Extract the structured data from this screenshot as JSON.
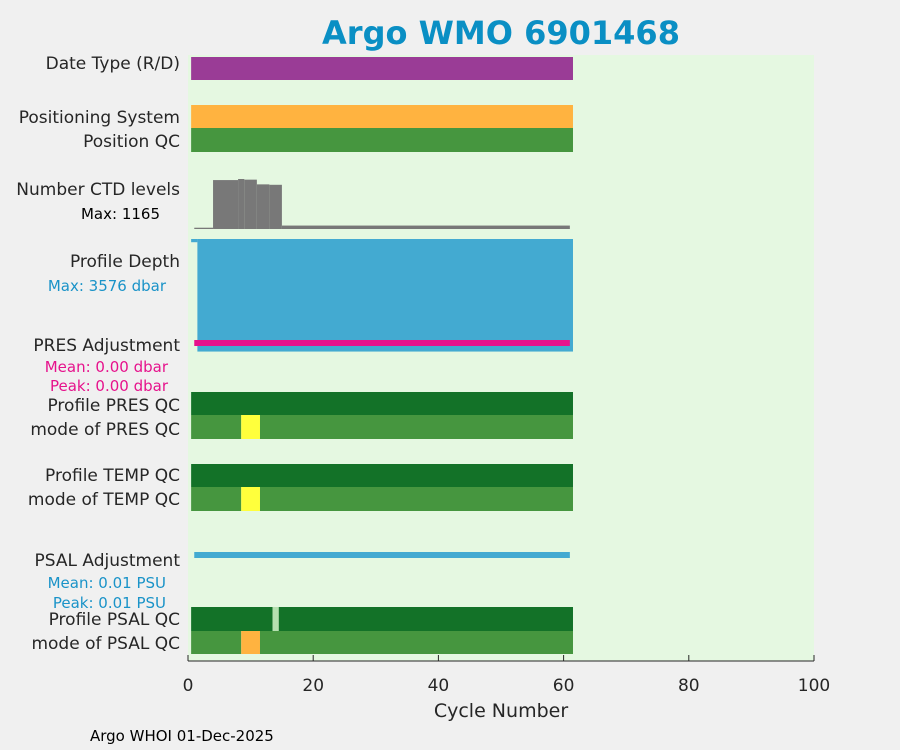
{
  "title": "Argo WMO 6901468",
  "footer": "Argo WHOI 01-Dec-2025",
  "colors": {
    "title": "#0a8fc4",
    "plot_bg": "#e5f8e1",
    "date_type": "#9a3c96",
    "positioning": "#ffb340",
    "qc_good": "#46963f",
    "qc_dark": "#137228",
    "qc_yellow": "#ffff3c",
    "qc_orange": "#ffb340",
    "qc_light": "#b6e0b0",
    "ctd": "#787878",
    "depth": "#43aad1",
    "pres_adj": "#e6128c",
    "psal_adj": "#43aad1",
    "depth_text": "#1a93c8",
    "pres_text": "#e6128c",
    "psal_text": "#1a93c8"
  },
  "rows": {
    "date_type": "Date Type (R/D)",
    "positioning": "Positioning System",
    "position_qc": "Position QC",
    "ctd": "Number CTD levels",
    "ctd_max": "Max: 1165",
    "depth": "Profile Depth",
    "depth_max": "Max: 3576 dbar",
    "pres_adj": "PRES Adjustment",
    "pres_mean": "Mean: 0.00 dbar",
    "pres_peak": "Peak: 0.00 dbar",
    "pres_qc": "Profile PRES QC",
    "pres_mode": "mode of PRES QC",
    "temp_qc": "Profile TEMP QC",
    "temp_mode": "mode of TEMP QC",
    "psal_adj": "PSAL Adjustment",
    "psal_mean": "Mean: 0.01 PSU",
    "psal_peak": "Peak: 0.01 PSU",
    "psal_qc": "Profile PSAL QC",
    "psal_mode": "mode of PSAL QC"
  },
  "chart_data": {
    "type": "bar",
    "xlabel": "Cycle Number",
    "xlim": [
      0,
      100
    ],
    "xticks": [
      0,
      20,
      40,
      60,
      80,
      100
    ],
    "cycles": [
      1,
      61
    ],
    "ctd_levels": {
      "max": 1165,
      "segments": [
        {
          "from": 1,
          "to": 4,
          "value": 30
        },
        {
          "from": 4,
          "to": 8,
          "value": 1140
        },
        {
          "from": 8,
          "to": 9,
          "value": 1165
        },
        {
          "from": 9,
          "to": 11,
          "value": 1150
        },
        {
          "from": 11,
          "to": 13,
          "value": 1040
        },
        {
          "from": 13,
          "to": 15,
          "value": 1030
        },
        {
          "from": 15,
          "to": 61,
          "value": 80
        }
      ]
    },
    "profile_depth": {
      "max_dbar": 3576,
      "segments": [
        {
          "from": 0.5,
          "to": 1.5,
          "value": 100
        },
        {
          "from": 1.5,
          "to": 61.5,
          "value": 3500
        }
      ]
    },
    "pres_qc": {
      "profile": [
        {
          "from": 0.5,
          "to": 61.5,
          "code": "dark"
        }
      ],
      "mode": [
        {
          "from": 0.5,
          "to": 8.5,
          "code": "good"
        },
        {
          "from": 8.5,
          "to": 11.5,
          "code": "yellow"
        },
        {
          "from": 11.5,
          "to": 61.5,
          "code": "good"
        }
      ]
    },
    "temp_qc": {
      "profile": [
        {
          "from": 0.5,
          "to": 61.5,
          "code": "dark"
        }
      ],
      "mode": [
        {
          "from": 0.5,
          "to": 8.5,
          "code": "good"
        },
        {
          "from": 8.5,
          "to": 11.5,
          "code": "yellow"
        },
        {
          "from": 11.5,
          "to": 61.5,
          "code": "good"
        }
      ]
    },
    "psal_qc": {
      "profile": [
        {
          "from": 0.5,
          "to": 13.5,
          "code": "dark"
        },
        {
          "from": 13.5,
          "to": 14.5,
          "code": "light"
        },
        {
          "from": 14.5,
          "to": 61.5,
          "code": "dark"
        }
      ],
      "mode": [
        {
          "from": 0.5,
          "to": 8.5,
          "code": "good"
        },
        {
          "from": 8.5,
          "to": 11.5,
          "code": "orange"
        },
        {
          "from": 11.5,
          "to": 61.5,
          "code": "good"
        }
      ]
    }
  }
}
